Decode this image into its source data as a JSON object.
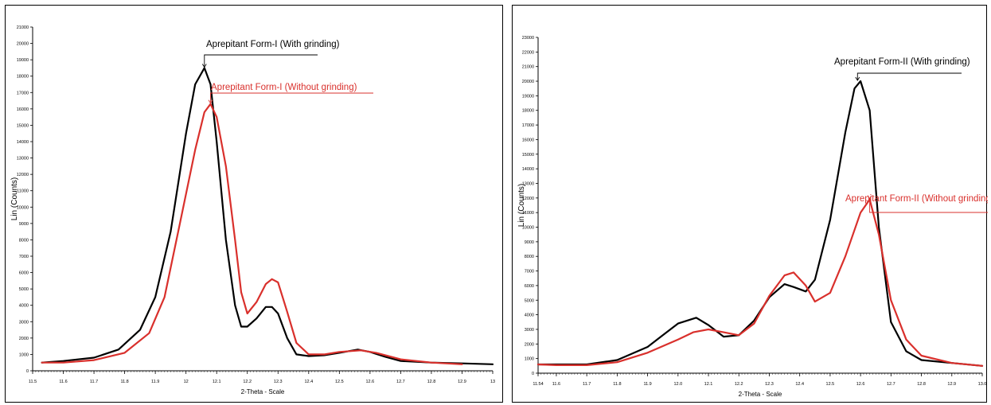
{
  "chart_data": [
    {
      "type": "line",
      "xlabel": "2-Theta - Scale",
      "ylabel": "Lin (Counts)",
      "xlim": [
        11.5,
        13.0
      ],
      "ylim": [
        0,
        21000
      ],
      "xticks": [
        "11.5",
        "11.6",
        "11.7",
        "11.8",
        "11.9",
        "12",
        "12.1",
        "12.2",
        "12.3",
        "12.4",
        "12.5",
        "12.6",
        "12.7",
        "12.8",
        "12.9",
        "13"
      ],
      "yticks": [
        "0",
        "1000",
        "2000",
        "3000",
        "4000",
        "5000",
        "6000",
        "7000",
        "8000",
        "9000",
        "10000",
        "11000",
        "12000",
        "13000",
        "14000",
        "15000",
        "16000",
        "17000",
        "18000",
        "19000",
        "20000",
        "21000"
      ],
      "grid": false,
      "series": [
        {
          "name": "Aprepitant Form-I (With grinding)",
          "color": "#000000",
          "x": [
            11.53,
            11.6,
            11.7,
            11.78,
            11.85,
            11.9,
            11.95,
            12.0,
            12.03,
            12.06,
            12.08,
            12.1,
            12.13,
            12.16,
            12.18,
            12.2,
            12.23,
            12.26,
            12.28,
            12.3,
            12.33,
            12.36,
            12.4,
            12.45,
            12.5,
            12.56,
            12.6,
            12.65,
            12.7,
            12.8,
            12.9,
            13.0
          ],
          "y": [
            500,
            600,
            800,
            1300,
            2500,
            4500,
            8500,
            14500,
            17500,
            18500,
            17500,
            14000,
            8000,
            4000,
            2700,
            2700,
            3200,
            3900,
            3900,
            3500,
            2000,
            1000,
            900,
            950,
            1100,
            1300,
            1150,
            850,
            600,
            500,
            450,
            400
          ]
        },
        {
          "name": "Aprepitant Form-I (Without grinding)",
          "color": "#d9302c",
          "x": [
            11.53,
            11.6,
            11.7,
            11.8,
            11.88,
            11.93,
            11.98,
            12.03,
            12.06,
            12.08,
            12.1,
            12.13,
            12.16,
            12.18,
            12.2,
            12.23,
            12.26,
            12.28,
            12.3,
            12.33,
            12.36,
            12.4,
            12.45,
            12.5,
            12.57,
            12.62,
            12.7,
            12.8,
            12.9
          ],
          "y": [
            500,
            500,
            650,
            1100,
            2300,
            4500,
            9000,
            13500,
            15800,
            16300,
            15500,
            12500,
            8000,
            4800,
            3500,
            4200,
            5300,
            5600,
            5400,
            3600,
            1700,
            1000,
            1000,
            1150,
            1250,
            1100,
            700,
            500,
            400
          ]
        }
      ],
      "annotations": [
        {
          "text": "Aprepitant Form-I (With grinding)",
          "color": "#000000",
          "x": 12.06,
          "y": 18500
        },
        {
          "text": "Aprepitant Form-I (Without grinding)",
          "color": "#d9302c",
          "x": 12.08,
          "y": 16300
        }
      ]
    },
    {
      "type": "line",
      "xlabel": "2-Theta - Scale",
      "ylabel": "Lin (Counts)",
      "xlim": [
        11.54,
        13.0
      ],
      "ylim": [
        0,
        23000
      ],
      "xticks": [
        "11.54",
        "11.6",
        "11.7",
        "11.8",
        "11.9",
        "12.0",
        "12.1",
        "12.2",
        "12.3",
        "12.4",
        "12.5",
        "12.6",
        "12.7",
        "12.8",
        "12.9",
        "13.0"
      ],
      "yticks": [
        "0",
        "1000",
        "2000",
        "3000",
        "4000",
        "5000",
        "6000",
        "7000",
        "8000",
        "9000",
        "10000",
        "11000",
        "12000",
        "13000",
        "14000",
        "15000",
        "16000",
        "17000",
        "18000",
        "19000",
        "20000",
        "21000",
        "22000",
        "23000"
      ],
      "grid": false,
      "series": [
        {
          "name": "Aprepitant Form-II (With grinding)",
          "color": "#000000",
          "x": [
            11.54,
            11.6,
            11.7,
            11.8,
            11.9,
            11.95,
            12.0,
            12.06,
            12.1,
            12.15,
            12.2,
            12.25,
            12.3,
            12.35,
            12.38,
            12.42,
            12.45,
            12.5,
            12.55,
            12.58,
            12.6,
            12.63,
            12.66,
            12.7,
            12.75,
            12.8,
            12.9,
            13.0
          ],
          "y": [
            600,
            600,
            600,
            900,
            1800,
            2600,
            3400,
            3800,
            3300,
            2500,
            2600,
            3600,
            5200,
            6100,
            5900,
            5600,
            6400,
            10500,
            16500,
            19500,
            20000,
            18000,
            10000,
            3500,
            1500,
            900,
            700,
            500
          ]
        },
        {
          "name": "Aprepitant Form-II (Without grinding)",
          "color": "#d9302c",
          "x": [
            11.54,
            11.6,
            11.7,
            11.8,
            11.9,
            12.0,
            12.05,
            12.1,
            12.15,
            12.2,
            12.25,
            12.3,
            12.35,
            12.38,
            12.42,
            12.45,
            12.5,
            12.55,
            12.6,
            12.63,
            12.66,
            12.7,
            12.75,
            12.8,
            12.9,
            13.0
          ],
          "y": [
            600,
            550,
            550,
            750,
            1400,
            2300,
            2800,
            3000,
            2800,
            2600,
            3400,
            5300,
            6700,
            6900,
            6000,
            4900,
            5500,
            8000,
            11000,
            11900,
            9500,
            5000,
            2300,
            1200,
            700,
            500
          ]
        }
      ],
      "annotations": [
        {
          "text": "Aprepitant Form-II (With grinding)",
          "color": "#000000",
          "x": 12.59,
          "y": 20000
        },
        {
          "text": "Aprepitant Form-II (Without grinding)",
          "color": "#d9302c",
          "x": 12.63,
          "y": 11900
        }
      ]
    }
  ]
}
